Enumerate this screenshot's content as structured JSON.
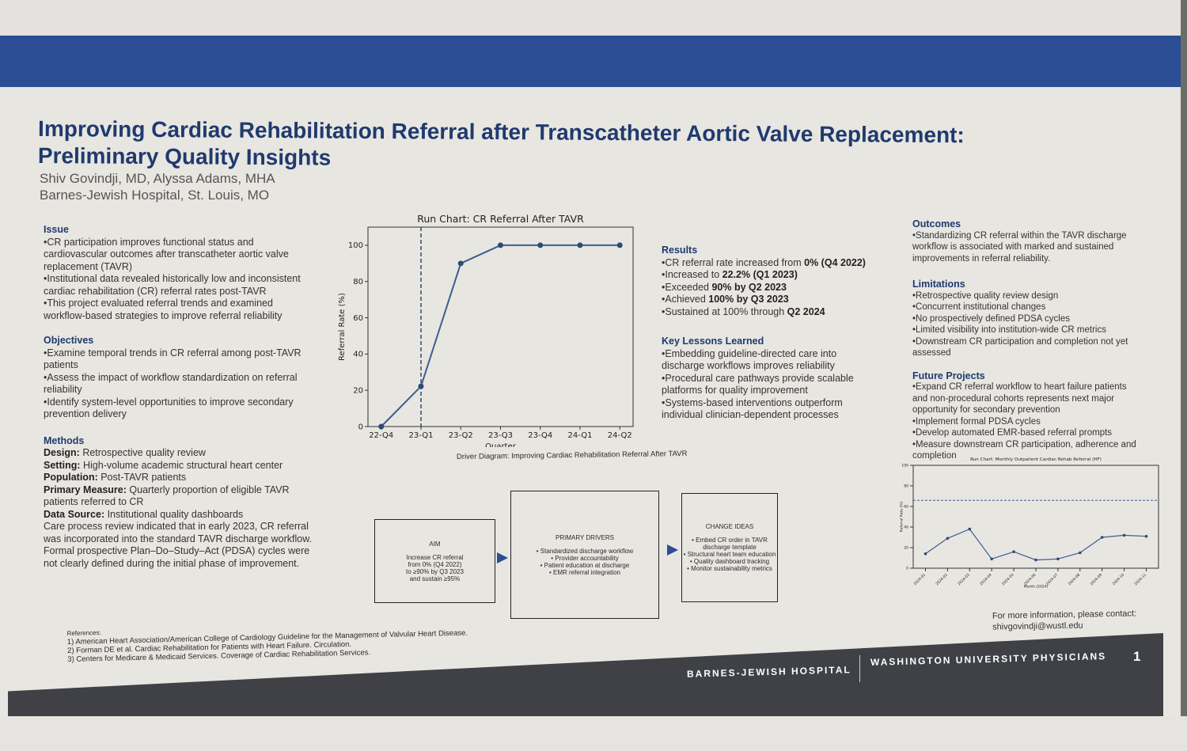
{
  "poster": {
    "title_line1": "Improving Cardiac Rehabilitation Referral after Transcatheter Aortic Valve Replacement:",
    "title_line2": "Preliminary Quality Insights",
    "authors": "Shiv Govindji, MD, Alyssa Adams, MHA",
    "affiliation": "Barnes-Jewish Hospital, St. Louis, MO"
  },
  "left": {
    "issue_h": "Issue",
    "issue": [
      "•CR participation improves functional status and cardiovascular outcomes after transcatheter aortic valve replacement (TAVR)",
      "•Institutional data revealed historically low and inconsistent cardiac rehabilitation (CR) referral rates post-TAVR",
      "•This project evaluated referral trends and examined workflow-based strategies to improve referral reliability"
    ],
    "objectives_h": "Objectives",
    "objectives": [
      "•Examine temporal trends in CR referral among post-TAVR patients",
      "•Assess the impact of workflow standardization on referral reliability",
      "•Identify system-level opportunities to improve secondary prevention delivery"
    ],
    "methods_h": "Methods",
    "methods": [
      {
        "k": "Design:",
        "v": " Retrospective quality review"
      },
      {
        "k": "Setting:",
        "v": " High-volume academic structural heart center"
      },
      {
        "k": "Population:",
        "v": " Post-TAVR patients"
      },
      {
        "k": "Primary Measure:",
        "v": " Quarterly proportion of eligible TAVR patients referred to CR"
      },
      {
        "k": "Data Source:",
        "v": " Institutional quality dashboards"
      }
    ],
    "methods_note": "Care process review indicated that in early 2023, CR referral was incorporated into the standard TAVR discharge workflow. Formal prospective Plan–Do–Study–Act (PDSA) cycles were not clearly defined during the initial phase of improvement."
  },
  "chart_data": [
    {
      "type": "line",
      "title": "Run Chart: CR Referral After TAVR",
      "xlabel": "Quarter",
      "ylabel": "Referral Rate (%)",
      "categories": [
        "22-Q4",
        "23-Q1",
        "23-Q2",
        "23-Q3",
        "23-Q4",
        "24-Q1",
        "24-Q2"
      ],
      "values": [
        0,
        22.2,
        90,
        100,
        100,
        100,
        100
      ],
      "ylim": [
        0,
        110
      ],
      "yticks": [
        0,
        20,
        40,
        60,
        80,
        100
      ],
      "annotation": "dashed vertical line at 23-Q1",
      "grid": false
    },
    {
      "type": "line",
      "title": "Run Chart: Monthly Outpatient Cardiac Rehab Referral (HF)",
      "xlabel": "Month (2024)",
      "ylabel": "Referral Rate (%)",
      "categories": [
        "2024-01",
        "2024-02",
        "2024-03",
        "2024-04",
        "2024-05",
        "2024-06",
        "2024-07",
        "2024-08",
        "2024-09",
        "2024-10",
        "2024-11"
      ],
      "values": [
        14,
        29,
        38,
        9,
        16,
        8,
        9,
        15,
        30,
        32,
        31
      ],
      "reference_line": 66,
      "ylim": [
        0,
        100
      ],
      "yticks": [
        0,
        20,
        40,
        60,
        80,
        100
      ],
      "grid": false
    }
  ],
  "driver": {
    "title": "Driver Diagram: Improving Cardiac Rehabilitation Referral After TAVR",
    "aim_h": "AIM",
    "aim": [
      "Increase CR referral",
      "from 0% (Q4 2022)",
      "to ≥90% by Q3 2023",
      "and sustain ≥95%"
    ],
    "drivers_h": "PRIMARY DRIVERS",
    "drivers": [
      "• Standardized discharge workflow",
      "• Provider accountability",
      "• Patient education at discharge",
      "• EMR referral integration"
    ],
    "ideas_h": "CHANGE IDEAS",
    "ideas": [
      "• Embed CR order in TAVR",
      "discharge template",
      "• Structural heart team education",
      "• Quality dashboard tracking",
      "• Monitor sustainability metrics"
    ]
  },
  "middle": {
    "results_h": "Results",
    "results": [
      [
        "•CR referral rate increased from ",
        "0% (Q4 2022)"
      ],
      [
        "•Increased to ",
        "22.2% (Q1 2023)"
      ],
      [
        "•Exceeded ",
        "90% by Q2 2023"
      ],
      [
        "•Achieved ",
        "100% by Q3 2023"
      ],
      [
        "•Sustained at 100% through ",
        "Q2 2024"
      ]
    ],
    "lessons_h": "Key Lessons Learned",
    "lessons": [
      "•Embedding guideline-directed care into discharge workflows improves reliability",
      "•Procedural care pathways provide scalable platforms for quality improvement",
      "•Systems-based interventions outperform individual clinician-dependent processes"
    ]
  },
  "right": {
    "outcomes_h": "Outcomes",
    "outcomes": [
      "•Standardizing CR referral within the TAVR discharge workflow is associated with marked and sustained improvements in referral reliability."
    ],
    "limitations_h": "Limitations",
    "limitations": [
      "•Retrospective quality review design",
      "•Concurrent institutional changes",
      "•No prospectively defined PDSA cycles",
      "•Limited visibility into institution-wide CR metrics",
      "•Downstream CR participation and completion not yet assessed"
    ],
    "future_h": "Future Projects",
    "future": [
      "•Expand CR referral workflow to heart failure patients and non-procedural cohorts represents next major opportunity for secondary prevention",
      "•Implement formal PDSA cycles",
      "•Develop automated EMR-based referral prompts",
      "•Measure downstream CR participation, adherence and completion"
    ],
    "contact1": "For more information, please contact:",
    "contact2": "shivgovindji@wustl.edu"
  },
  "references": {
    "h": "References:",
    "items": [
      "1) American Heart Association/American College of Cardiology Guideline for the Management of Valvular Heart Disease.",
      "2) Forman DE et al. Cardiac Rehabilitation for Patients with Heart Failure. Circulation.",
      "3) Centers for Medicare & Medicaid Services. Coverage of Cardiac Rehabilitation Services."
    ]
  },
  "footer": {
    "org1": "BARNES-JEWISH HOSPITAL",
    "org2": "WASHINGTON UNIVERSITY PHYSICIANS",
    "page": "1"
  },
  "colors": {
    "brand": "#2a4d93",
    "footer": "#3f4146",
    "line": "#3a5d92"
  }
}
